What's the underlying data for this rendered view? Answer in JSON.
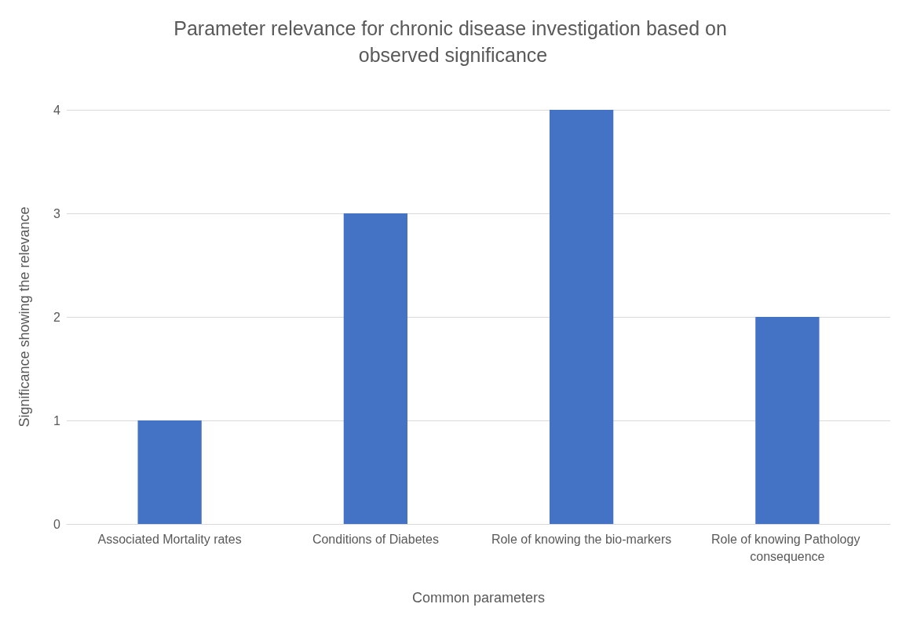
{
  "chart_data": {
    "type": "bar",
    "title": "Parameter relevance for chronic disease investigation based on observed significance",
    "xlabel": "Common parameters",
    "ylabel": "Significance showing the relevance",
    "categories": [
      "Associated Mortality rates",
      "Conditions of Diabetes",
      "Role of knowing the bio-markers",
      "Role of knowing Pathology consequence"
    ],
    "values": [
      1,
      3,
      4,
      2
    ],
    "color": "#4472c4",
    "ylim": [
      0,
      4
    ],
    "yticks": [
      0,
      1,
      2,
      3,
      4
    ],
    "grid": "y"
  }
}
